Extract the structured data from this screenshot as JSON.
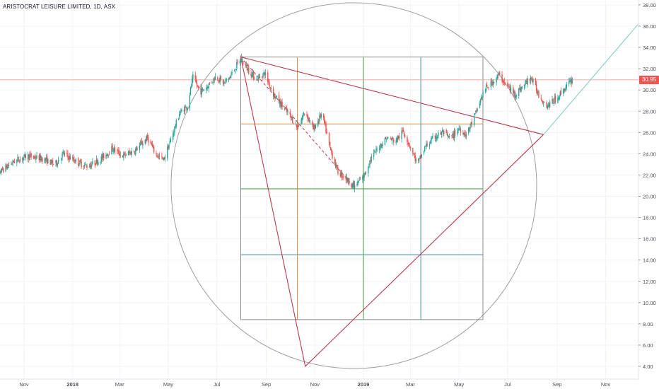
{
  "header": {
    "symbol_title": "ARISTOCRAT LEISURE LIMITED, 1D, ASX"
  },
  "price_tag": "30.95",
  "colors": {
    "up": "#26a69a",
    "down": "#ef5350",
    "grid": "#f0f3fa",
    "axis_text": "#4a4e57",
    "circle": "#9e9e9e",
    "box": "#8d8d8d",
    "red_line": "#b83a4b",
    "orange_line": "#d4914a",
    "green_line": "#3f9a3f",
    "blue_line": "#3f86a8",
    "trend_line": "#7fc8c0",
    "last_price_line": "#f28b8b"
  },
  "chart_data": {
    "type": "candlestick",
    "title": "ARISTOCRAT LEISURE LIMITED, 1D, ASX",
    "x_axis": {
      "ticks": [
        {
          "date": "2017-11-01",
          "label": "Nov"
        },
        {
          "date": "2018-01-01",
          "label": "2018"
        },
        {
          "date": "2018-03-01",
          "label": "Mar"
        },
        {
          "date": "2018-05-01",
          "label": "May"
        },
        {
          "date": "2018-07-01",
          "label": "Jul"
        },
        {
          "date": "2018-09-01",
          "label": "Sep"
        },
        {
          "date": "2018-11-01",
          "label": "Nov"
        },
        {
          "date": "2019-01-01",
          "label": "2019"
        },
        {
          "date": "2019-03-01",
          "label": "Mar"
        },
        {
          "date": "2019-05-01",
          "label": "May"
        },
        {
          "date": "2019-07-01",
          "label": "Jul"
        },
        {
          "date": "2019-09-01",
          "label": "Sep"
        },
        {
          "date": "2019-11-01",
          "label": "Nov"
        }
      ]
    },
    "y_axis": {
      "range": [
        3,
        39
      ],
      "ticks": [
        "4.00",
        "6.00",
        "8.00",
        "10.00",
        "12.00",
        "14.00",
        "16.00",
        "18.00",
        "20.00",
        "22.00",
        "24.00",
        "26.00",
        "28.00",
        "30.00",
        "32.00",
        "34.00",
        "36.00",
        "38.00"
      ]
    },
    "last_price": 30.95,
    "price_path": [
      [
        "2017-09-20",
        21.4
      ],
      [
        "2017-10-05",
        22.5
      ],
      [
        "2017-10-20",
        23.3
      ],
      [
        "2017-11-05",
        23.8
      ],
      [
        "2017-11-25",
        23.5
      ],
      [
        "2017-12-10",
        23.0
      ],
      [
        "2017-12-20",
        24.0
      ],
      [
        "2018-01-05",
        23.3
      ],
      [
        "2018-01-20",
        22.8
      ],
      [
        "2018-02-05",
        23.5
      ],
      [
        "2018-02-20",
        24.5
      ],
      [
        "2018-03-05",
        23.8
      ],
      [
        "2018-03-20",
        24.3
      ],
      [
        "2018-04-05",
        25.5
      ],
      [
        "2018-04-15",
        24.0
      ],
      [
        "2018-04-25",
        23.4
      ],
      [
        "2018-05-05",
        25.5
      ],
      [
        "2018-05-15",
        27.8
      ],
      [
        "2018-05-25",
        28.5
      ],
      [
        "2018-06-01",
        31.2
      ],
      [
        "2018-06-10",
        29.8
      ],
      [
        "2018-06-20",
        30.4
      ],
      [
        "2018-06-30",
        31.3
      ],
      [
        "2018-07-10",
        30.6
      ],
      [
        "2018-07-20",
        31.5
      ],
      [
        "2018-07-31",
        33.0
      ],
      [
        "2018-08-10",
        31.8
      ],
      [
        "2018-08-20",
        31.0
      ],
      [
        "2018-08-30",
        31.6
      ],
      [
        "2018-09-10",
        29.6
      ],
      [
        "2018-09-20",
        28.6
      ],
      [
        "2018-10-01",
        27.5
      ],
      [
        "2018-10-10",
        26.5
      ],
      [
        "2018-10-20",
        28.0
      ],
      [
        "2018-10-30",
        26.3
      ],
      [
        "2018-11-10",
        27.8
      ],
      [
        "2018-11-20",
        24.5
      ],
      [
        "2018-11-30",
        22.3
      ],
      [
        "2018-12-10",
        21.7
      ],
      [
        "2018-12-20",
        20.9
      ],
      [
        "2019-01-01",
        21.8
      ],
      [
        "2019-01-10",
        23.5
      ],
      [
        "2019-01-20",
        24.6
      ],
      [
        "2019-01-30",
        25.5
      ],
      [
        "2019-02-10",
        25.2
      ],
      [
        "2019-02-20",
        26.1
      ],
      [
        "2019-02-28",
        24.8
      ],
      [
        "2019-03-10",
        23.0
      ],
      [
        "2019-03-20",
        24.7
      ],
      [
        "2019-04-01",
        25.6
      ],
      [
        "2019-04-10",
        26.0
      ],
      [
        "2019-04-20",
        25.4
      ],
      [
        "2019-05-01",
        26.4
      ],
      [
        "2019-05-10",
        25.8
      ],
      [
        "2019-05-20",
        27.4
      ],
      [
        "2019-06-01",
        29.9
      ],
      [
        "2019-06-10",
        30.6
      ],
      [
        "2019-06-20",
        31.4
      ],
      [
        "2019-06-30",
        30.4
      ],
      [
        "2019-07-10",
        29.6
      ],
      [
        "2019-07-20",
        30.3
      ],
      [
        "2019-07-30",
        31.2
      ],
      [
        "2019-08-10",
        29.4
      ],
      [
        "2019-08-20",
        28.5
      ],
      [
        "2019-08-30",
        29.1
      ],
      [
        "2019-09-10",
        30.1
      ],
      [
        "2019-09-20",
        30.95
      ]
    ],
    "drawings": {
      "circle": {
        "center": [
          "2018-12-20",
          21.0
        ],
        "top_price": 38.2
      },
      "square": {
        "t1": "2018-07-31",
        "t2": "2019-05-31",
        "p1": 8.4,
        "p2": 33.1
      },
      "horizontal_levels": [
        {
          "color": "orange",
          "price": 26.8
        },
        {
          "color": "green",
          "price": 20.7
        },
        {
          "color": "blue",
          "price": 14.5
        }
      ],
      "vertical_levels": [
        {
          "color": "orange",
          "date": "2018-10-10"
        },
        {
          "color": "green",
          "date": "2019-01-01"
        },
        {
          "color": "blue",
          "date": "2019-03-14"
        }
      ],
      "triangle": [
        [
          "2018-07-31",
          33.1
        ],
        [
          "2018-10-20",
          4.0
        ],
        [
          "2019-08-15",
          25.8
        ]
      ],
      "dashed_trend": [
        [
          "2018-07-31",
          33.1
        ],
        [
          "2018-12-20",
          20.9
        ]
      ],
      "rising_trend": [
        [
          "2019-08-15",
          25.8
        ],
        [
          "2019-12-20",
          36.9
        ]
      ]
    }
  }
}
